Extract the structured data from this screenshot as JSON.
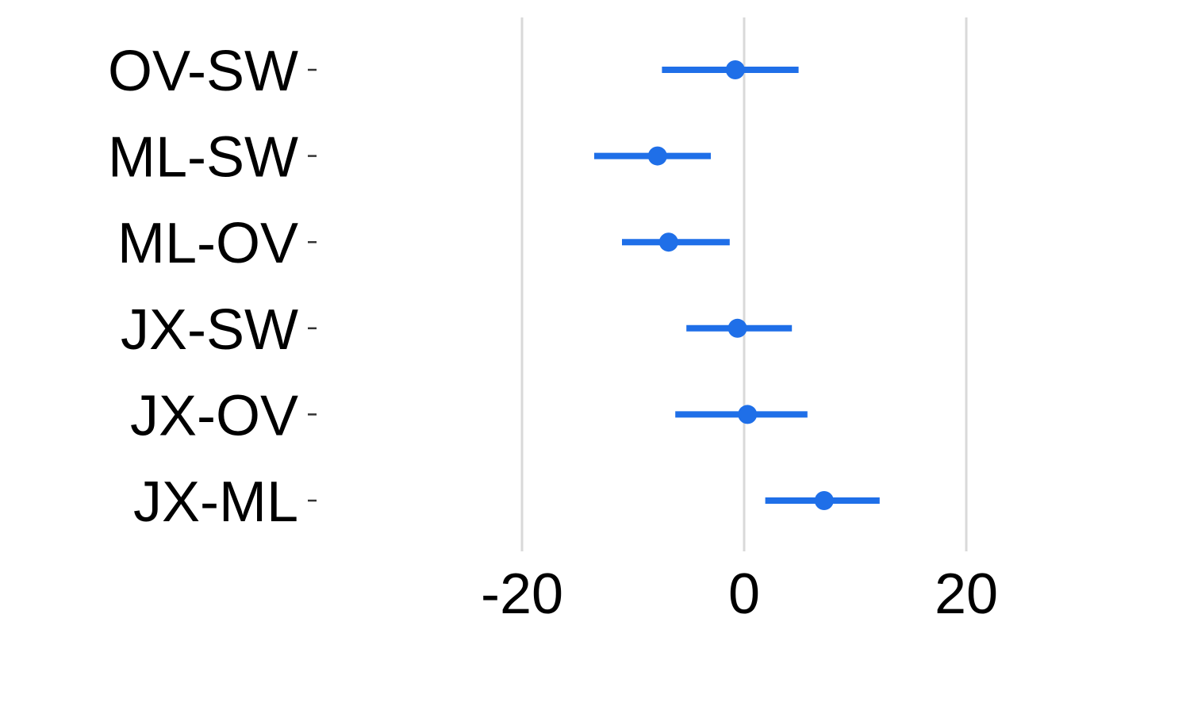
{
  "chart_data": {
    "type": "scatter",
    "subtype": "point-range",
    "title": "",
    "xlabel": "",
    "ylabel": "",
    "xlim": [
      -40,
      40
    ],
    "x_ticks": [
      -20,
      0,
      20
    ],
    "x_tick_labels": [
      "-20",
      "0",
      "20"
    ],
    "grid": "vertical major gridlines",
    "legend": "none",
    "colors": {
      "series": "#1f6fe8",
      "grid": "#d9d9d9",
      "tick": "#333333"
    },
    "categories": [
      "OV-SW",
      "ML-SW",
      "ML-OV",
      "JX-SW",
      "JX-OV",
      "JX-ML"
    ],
    "points": [
      {
        "label": "OV-SW",
        "estimate": -0.8,
        "lower": -7.4,
        "upper": 4.9
      },
      {
        "label": "ML-SW",
        "estimate": -7.8,
        "lower": -13.5,
        "upper": -3.0
      },
      {
        "label": "ML-OV",
        "estimate": -6.8,
        "lower": -11.0,
        "upper": -1.3
      },
      {
        "label": "JX-SW",
        "estimate": -0.6,
        "lower": -5.2,
        "upper": 4.3
      },
      {
        "label": "JX-OV",
        "estimate": 0.3,
        "lower": -6.2,
        "upper": 5.7
      },
      {
        "label": "JX-ML",
        "estimate": 7.2,
        "lower": 1.9,
        "upper": 12.2
      }
    ]
  }
}
